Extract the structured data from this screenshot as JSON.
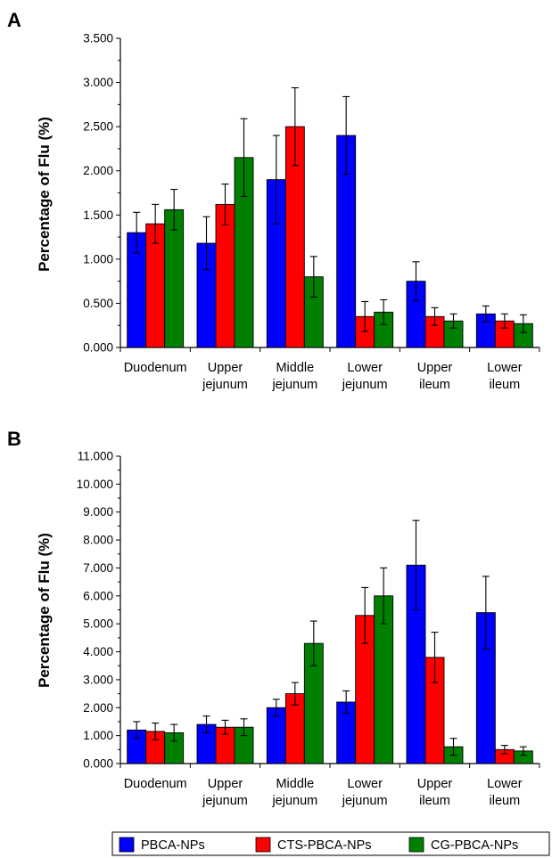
{
  "colors": {
    "PBCA-NPs": "#0000ff",
    "CTS-PBCA-NPs": "#ff0000",
    "CG-PBCA-NPs": "#008000"
  },
  "legend": {
    "items": [
      "PBCA-NPs",
      "CTS-PBCA-NPs",
      "CG-PBCA-NPs"
    ]
  },
  "chart_data": [
    {
      "type": "bar",
      "panel": "A",
      "ylabel": "Percentage of Flu (%)",
      "xlabel": "",
      "ylim": [
        0,
        3.5
      ],
      "yticks": [
        "0.000",
        "0.500",
        "1.000",
        "1.500",
        "2.000",
        "2.500",
        "3.000",
        "3.500"
      ],
      "categories": [
        [
          "Duodenum"
        ],
        [
          "Upper",
          "jejunum"
        ],
        [
          "Middle",
          "jejunum"
        ],
        [
          "Lower",
          "jejunum"
        ],
        [
          "Upper",
          "ileum"
        ],
        [
          "Lower",
          "ileum"
        ]
      ],
      "series": [
        {
          "name": "PBCA-NPs",
          "values": [
            1.3,
            1.18,
            1.9,
            2.4,
            0.75,
            0.38
          ],
          "errors": [
            0.23,
            0.3,
            0.5,
            0.44,
            0.22,
            0.09
          ]
        },
        {
          "name": "CTS-PBCA-NPs",
          "values": [
            1.4,
            1.62,
            2.5,
            0.35,
            0.35,
            0.3
          ],
          "errors": [
            0.22,
            0.23,
            0.44,
            0.17,
            0.1,
            0.08
          ]
        },
        {
          "name": "CG-PBCA-NPs",
          "values": [
            1.56,
            2.15,
            0.8,
            0.4,
            0.3,
            0.27
          ],
          "errors": [
            0.23,
            0.44,
            0.23,
            0.14,
            0.08,
            0.1
          ]
        }
      ]
    },
    {
      "type": "bar",
      "panel": "B",
      "ylabel": "Percentage of Flu (%)",
      "xlabel": "",
      "ylim": [
        0,
        11
      ],
      "yticks": [
        "0.000",
        "1.000",
        "2.000",
        "3.000",
        "4.000",
        "5.000",
        "6.000",
        "7.000",
        "8.000",
        "9.000",
        "10.000",
        "11.000"
      ],
      "categories": [
        [
          "Duodenum"
        ],
        [
          "Upper",
          "jejunum"
        ],
        [
          "Middle",
          "jejunum"
        ],
        [
          "Lower",
          "jejunum"
        ],
        [
          "Upper",
          "ileum"
        ],
        [
          "Lower",
          "ileum"
        ]
      ],
      "series": [
        {
          "name": "PBCA-NPs",
          "values": [
            1.2,
            1.4,
            2.0,
            2.2,
            7.1,
            5.4
          ],
          "errors": [
            0.3,
            0.3,
            0.3,
            0.4,
            1.6,
            1.3
          ]
        },
        {
          "name": "CTS-PBCA-NPs",
          "values": [
            1.15,
            1.3,
            2.5,
            5.3,
            3.8,
            0.5
          ],
          "errors": [
            0.3,
            0.25,
            0.4,
            1.0,
            0.9,
            0.15
          ]
        },
        {
          "name": "CG-PBCA-NPs",
          "values": [
            1.1,
            1.3,
            4.3,
            6.0,
            0.6,
            0.45
          ],
          "errors": [
            0.3,
            0.3,
            0.8,
            1.0,
            0.3,
            0.15
          ]
        }
      ]
    }
  ]
}
